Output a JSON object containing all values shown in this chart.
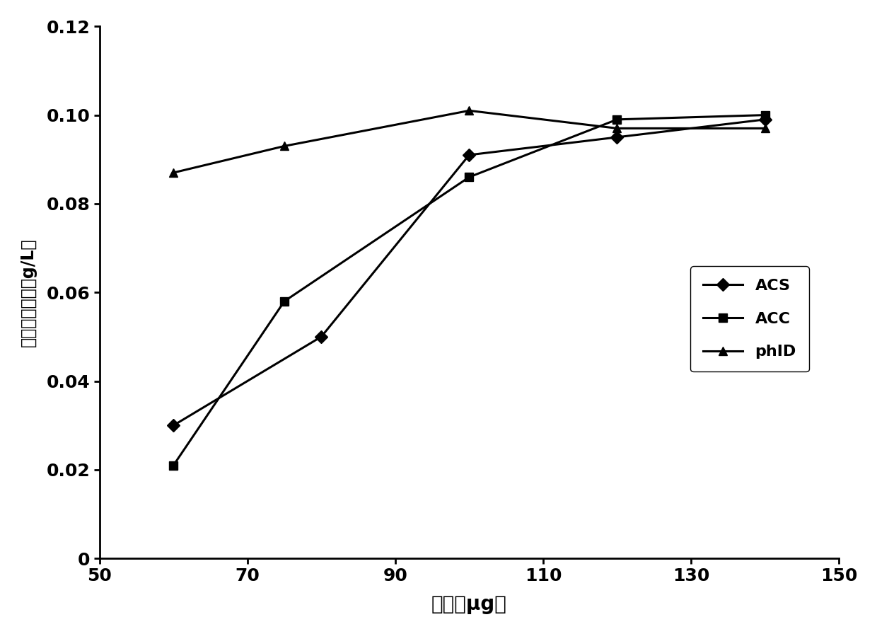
{
  "series": [
    {
      "label": "ACS",
      "x": [
        60,
        80,
        100,
        120,
        140
      ],
      "y": [
        0.03,
        0.05,
        0.091,
        0.095,
        0.099
      ],
      "marker": "D",
      "color": "#000000",
      "linewidth": 2.2,
      "markersize": 9
    },
    {
      "label": "ACC",
      "x": [
        60,
        75,
        100,
        120,
        140
      ],
      "y": [
        0.021,
        0.058,
        0.086,
        0.099,
        0.1
      ],
      "marker": "s",
      "color": "#000000",
      "linewidth": 2.2,
      "markersize": 9
    },
    {
      "label": "phID",
      "x": [
        60,
        75,
        100,
        120,
        140
      ],
      "y": [
        0.087,
        0.093,
        0.101,
        0.097,
        0.097
      ],
      "marker": "^",
      "color": "#000000",
      "linewidth": 2.2,
      "markersize": 9
    }
  ],
  "xlabel": "酶量（μg）",
  "ylabel": "间苯三酚浓度（g/L）",
  "xlim": [
    50,
    150
  ],
  "ylim": [
    0,
    0.12
  ],
  "xticks": [
    50,
    70,
    90,
    110,
    130,
    150
  ],
  "yticks": [
    0,
    0.02,
    0.04,
    0.06,
    0.08,
    0.1,
    0.12
  ],
  "xlabel_fontsize": 20,
  "ylabel_fontsize": 17,
  "tick_fontsize": 18,
  "legend_fontsize": 16,
  "background_color": "#ffffff",
  "figsize": [
    12.4,
    8.96
  ],
  "dpi": 100
}
